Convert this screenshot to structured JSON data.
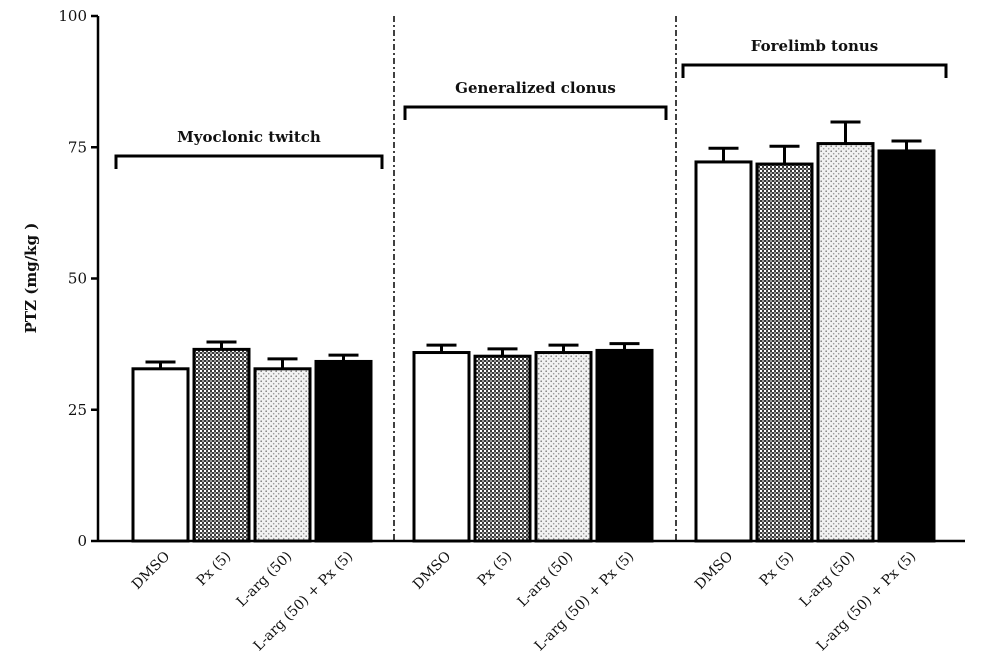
{
  "chart_data": {
    "type": "bar",
    "ylabel": "PTZ (mg/kg )",
    "ylim": [
      0,
      100
    ],
    "yticks": [
      0,
      25,
      50,
      75,
      100
    ],
    "categories": [
      "DMSO",
      "Px (5)",
      "L-arg (50)",
      "L-arg (50) + Px (5)"
    ],
    "bar_fills": [
      "white",
      "dense-check",
      "light-dots",
      "black"
    ],
    "groups": [
      {
        "name": "Myoclonic twitch",
        "values": [
          32.8,
          36.5,
          32.8,
          34.2
        ],
        "errors": [
          1.3,
          1.4,
          1.9,
          1.2
        ]
      },
      {
        "name": "Generalized clonus",
        "values": [
          35.9,
          35.2,
          35.9,
          36.3
        ],
        "errors": [
          1.4,
          1.4,
          1.4,
          1.3
        ]
      },
      {
        "name": "Forelimb tonus",
        "values": [
          72.2,
          71.8,
          75.7,
          74.3
        ],
        "errors": [
          2.6,
          3.4,
          4.1,
          1.9
        ]
      }
    ],
    "grid": false,
    "legend": "none"
  }
}
